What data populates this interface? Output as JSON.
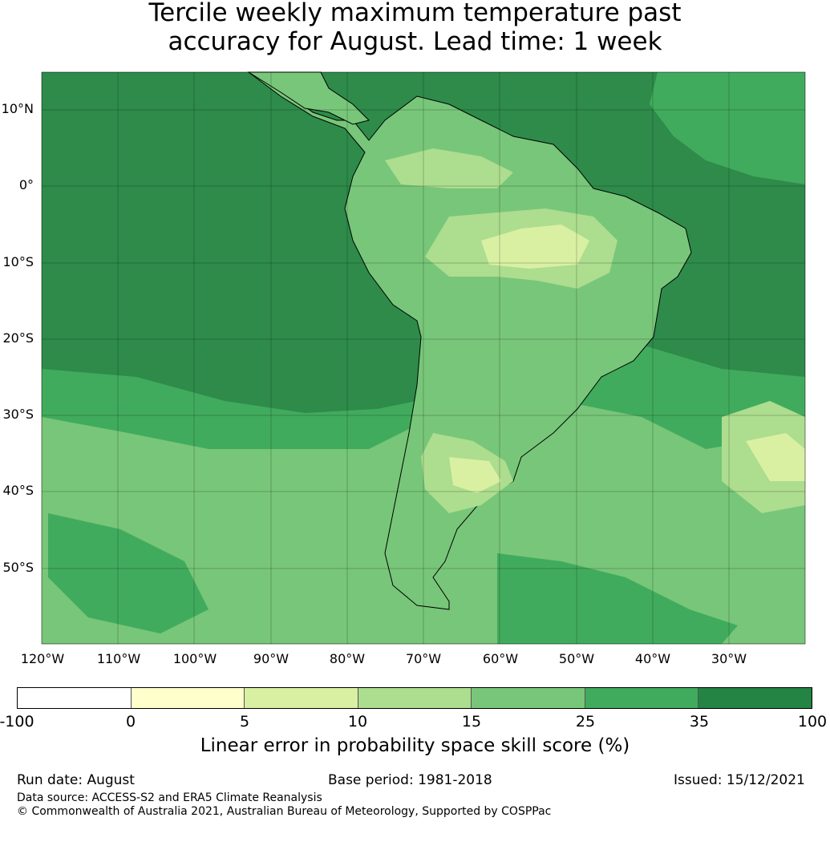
{
  "title_line1": "Tercile weekly maximum temperature past",
  "title_line2": "accuracy for August. Lead time: 1 week",
  "map": {
    "lon_labels": [
      "120°W",
      "110°W",
      "100°W",
      "90°W",
      "80°W",
      "70°W",
      "60°W",
      "50°W",
      "40°W",
      "30°W"
    ],
    "lat_labels": [
      "10°N",
      "0°",
      "10°S",
      "20°S",
      "30°S",
      "40°S",
      "50°S"
    ]
  },
  "colorbar": {
    "ticks": [
      "-100",
      "0",
      "5",
      "10",
      "15",
      "25",
      "35",
      "100"
    ],
    "colors": [
      "#ffffff",
      "#ffffcc",
      "#d9f0a3",
      "#addd8e",
      "#78c679",
      "#41ab5d",
      "#238443"
    ],
    "label": "Linear error in probability space skill score (%)"
  },
  "footer": {
    "run_date": "Run date: August",
    "base_period": "Base period: 1981-2018",
    "issued": "Issued: 15/12/2021",
    "source": "Data source: ACCESS-S2 and ERA5 Climate Reanalysis",
    "copyright": "© Commonwealth of Australia 2021, Australian Bureau of Meteorology, Supported by COSPPac"
  }
}
